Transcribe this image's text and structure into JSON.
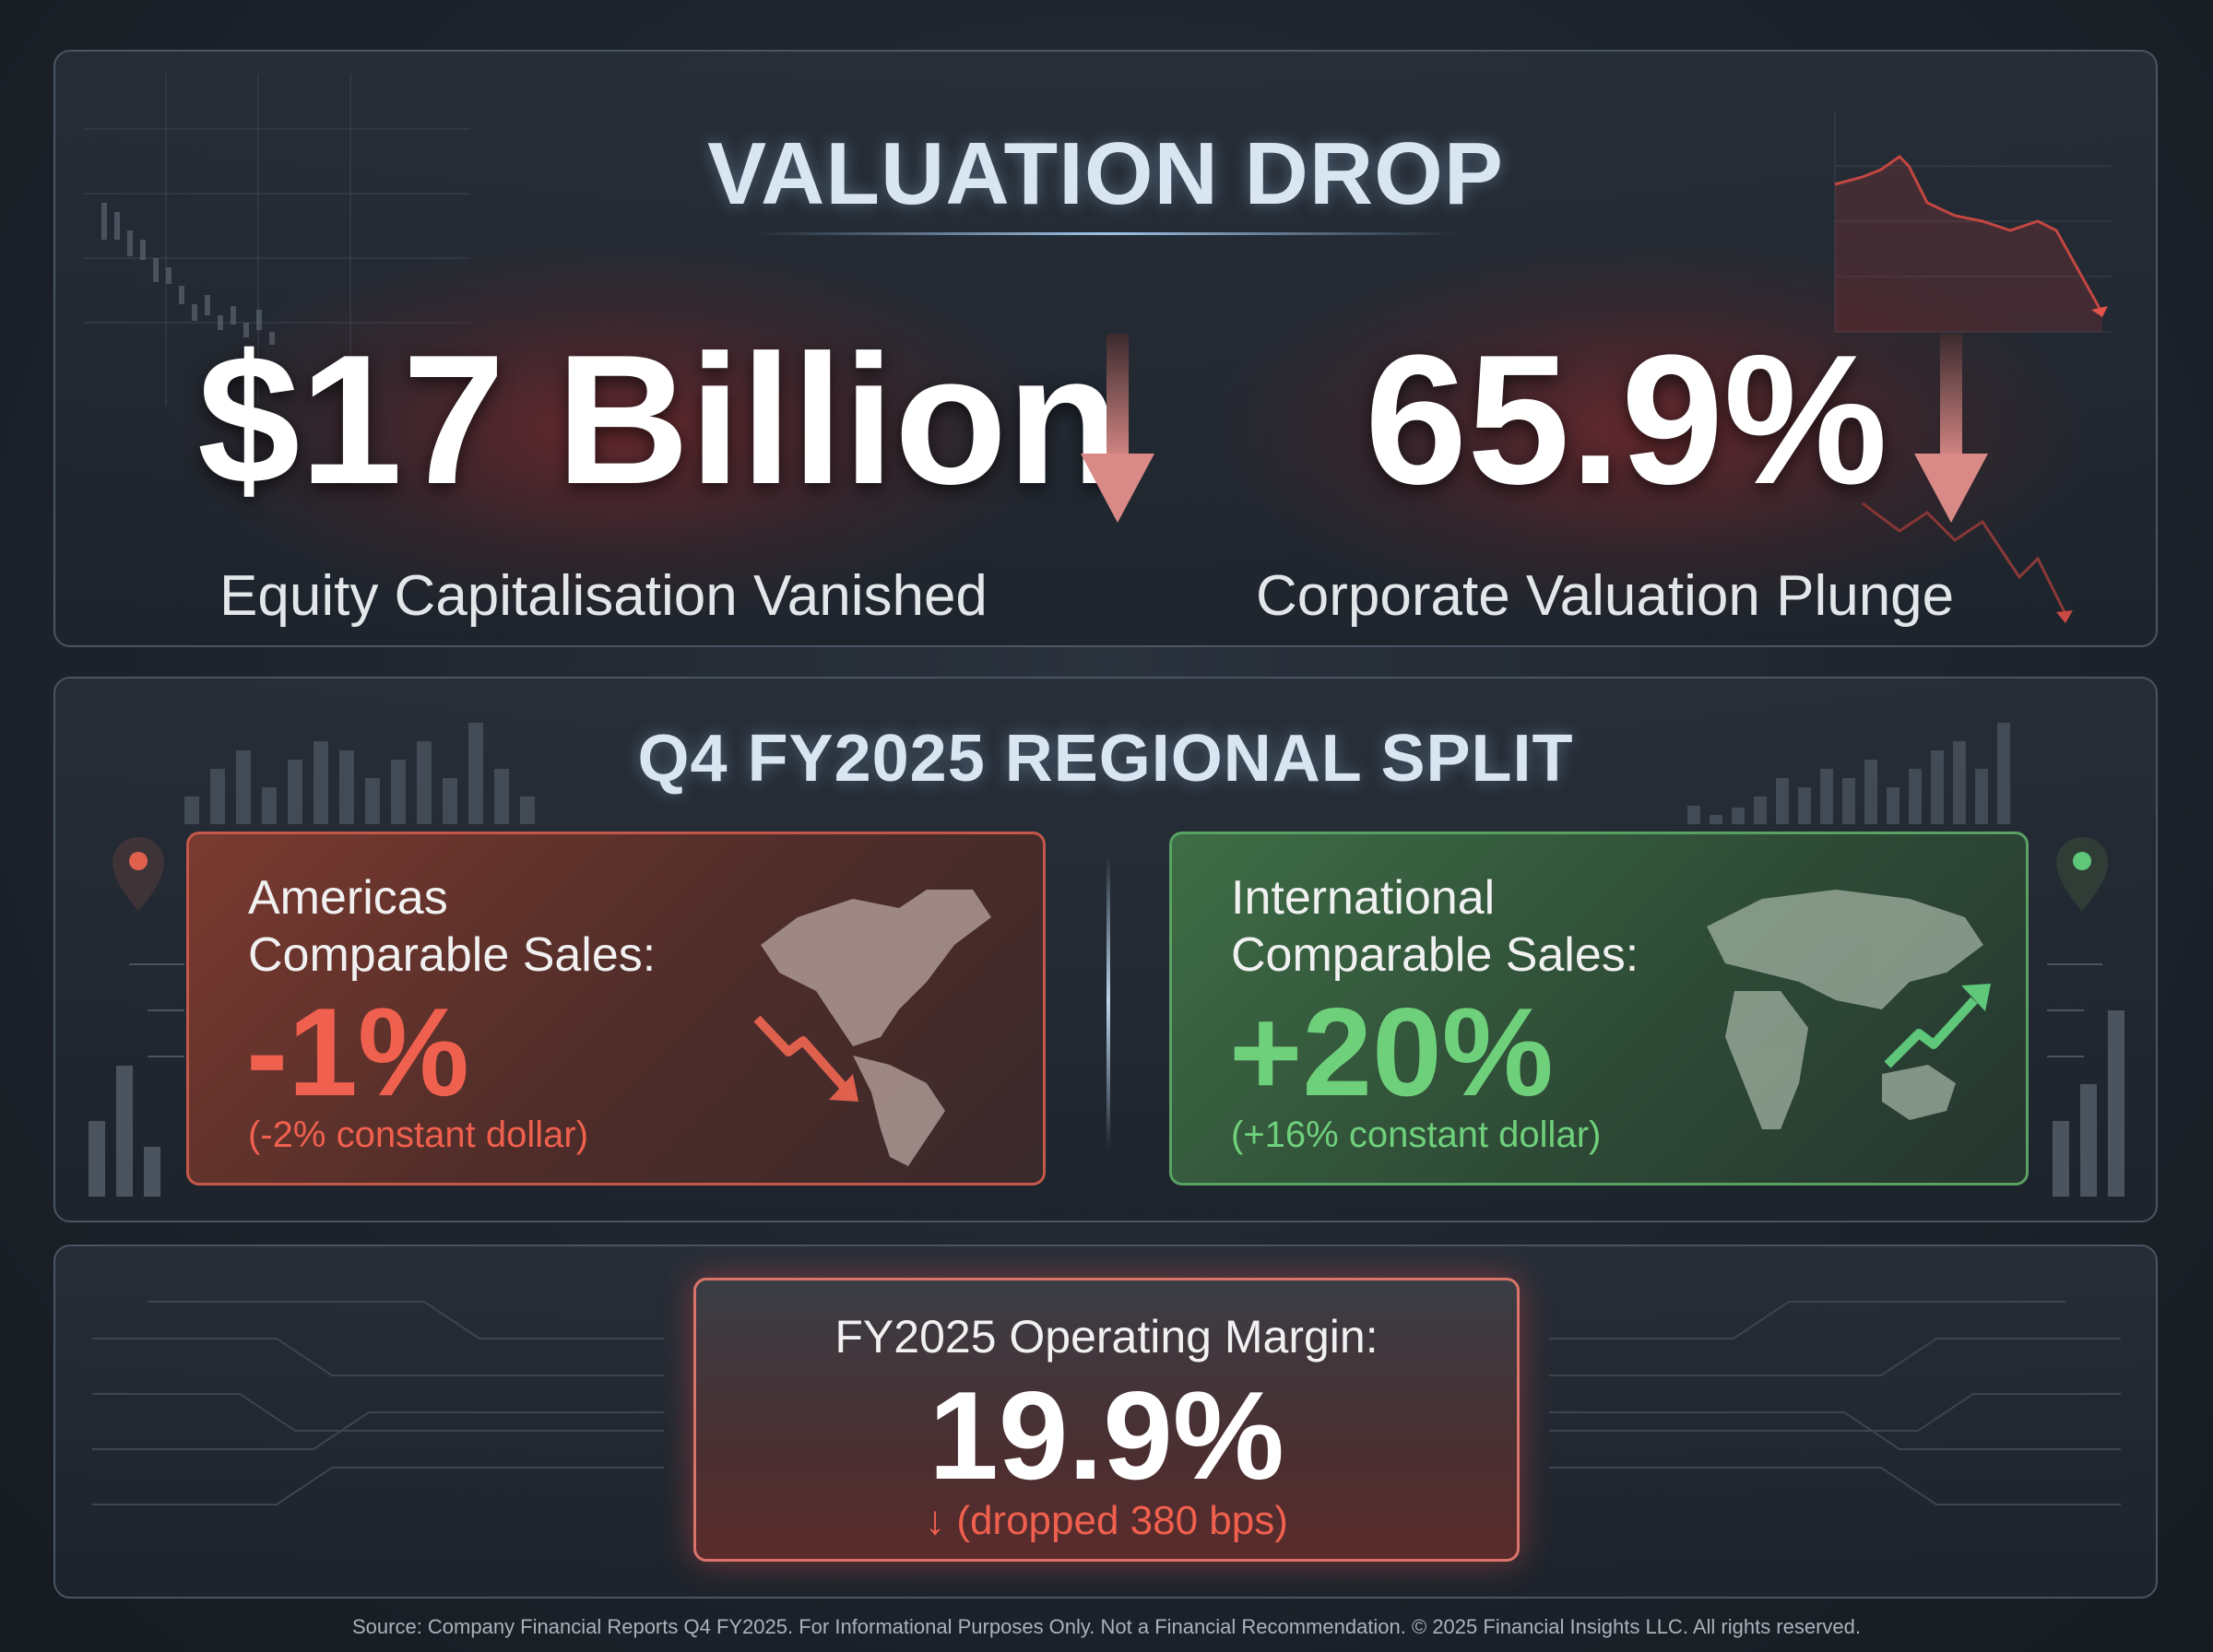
{
  "valuation": {
    "title": "VALUATION DROP",
    "equity": {
      "value": "$17 Billion",
      "label": "Equity Capitalisation Vanished"
    },
    "plunge": {
      "value": "65.9%",
      "label": "Corporate Valuation Plunge"
    }
  },
  "regional": {
    "title": "Q4 FY2025 REGIONAL SPLIT",
    "americas": {
      "label_line1": "Americas",
      "label_line2": "Comparable Sales:",
      "value": "-1%",
      "note": "(-2% constant dollar)"
    },
    "international": {
      "label_line1": "International",
      "label_line2": "Comparable Sales:",
      "value": "+20%",
      "note": "(+16% constant dollar)"
    }
  },
  "margin": {
    "label": "FY2025 Operating Margin:",
    "value": "19.9%",
    "note": "(dropped 380 bps)"
  },
  "footer": "Source: Company Financial Reports Q4 FY2025. For Informational Purposes Only. Not a Financial Recommendation. © 2025 Financial Insights LLC. All rights reserved.",
  "colors": {
    "negative": "#f0604e",
    "positive": "#6fd07c",
    "title": "#d9e6f2"
  },
  "icons": [
    "down-arrow-icon",
    "location-pin-icon",
    "world-map-icon",
    "trend-down-icon",
    "trend-up-icon"
  ]
}
